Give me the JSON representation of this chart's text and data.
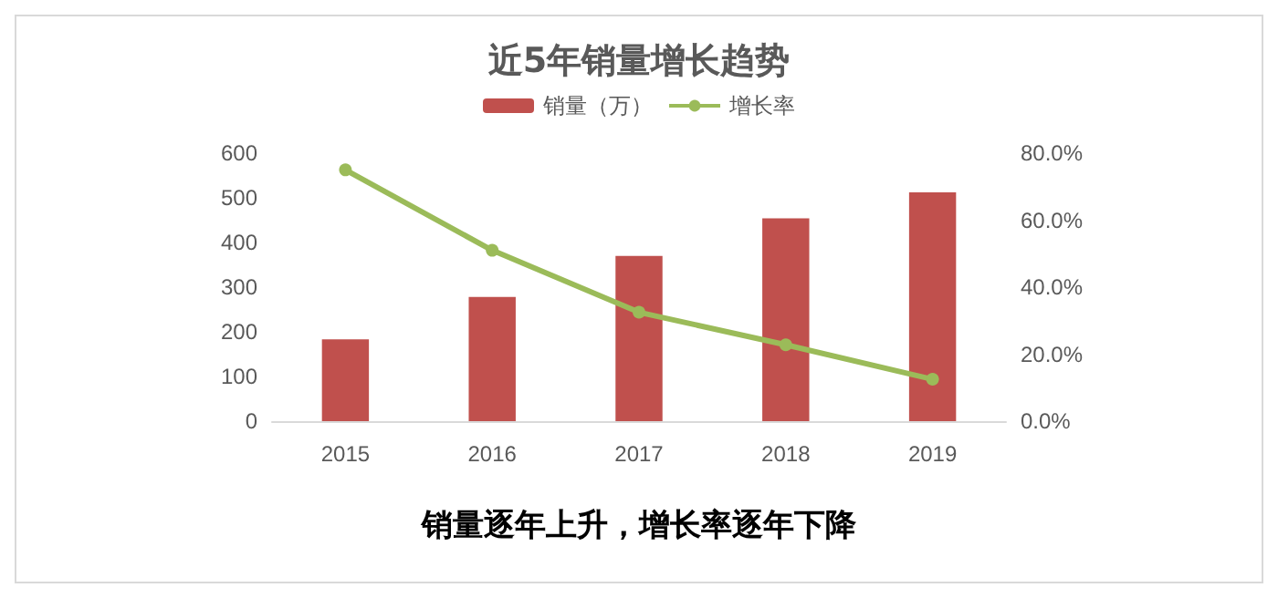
{
  "chart_data": {
    "type": "bar",
    "title": "近5年销量增长趋势",
    "categories": [
      "2015",
      "2016",
      "2017",
      "2018",
      "2019"
    ],
    "series": [
      {
        "name": "销量（万）",
        "color": "#c0504d",
        "values": [
          183,
          278,
          370,
          454,
          512
        ]
      },
      {
        "name": "增长率",
        "type": "line",
        "axis": "y2",
        "color": "#9bbb59",
        "values": [
          75,
          51,
          32.5,
          22.8,
          12.5
        ]
      }
    ],
    "ylim": [
      0,
      600
    ],
    "yticks": [
      0,
      100,
      200,
      300,
      400,
      500,
      600
    ],
    "y2lim": [
      0,
      80
    ],
    "y2ticks": [
      {
        "value": 0,
        "label": "0.0%"
      },
      {
        "value": 20,
        "label": "20.0%"
      },
      {
        "value": 40,
        "label": "40.0%"
      },
      {
        "value": 60,
        "label": "60.0%"
      },
      {
        "value": 80,
        "label": "80.0%"
      }
    ],
    "legend": "top",
    "grid": false,
    "marker": "circle",
    "annotations": [
      "销量逐年上升，增长率逐年下降"
    ]
  }
}
